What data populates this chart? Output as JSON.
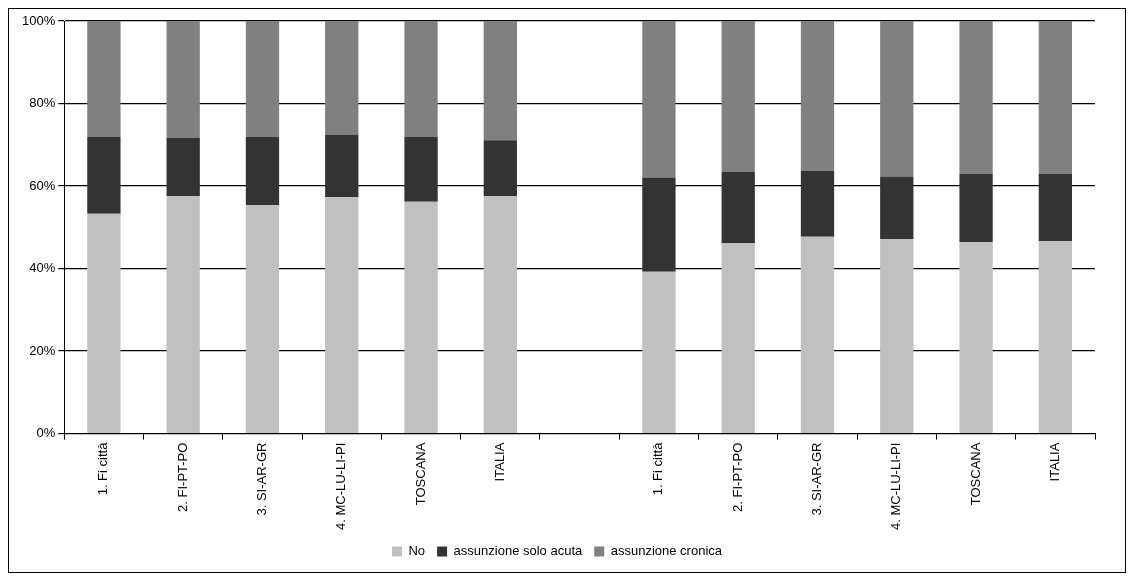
{
  "chart_data": {
    "type": "bar",
    "stacked": true,
    "categories": [
      "1. Fi città",
      "2. FI-PT-PO",
      "3. SI-AR-GR",
      "4. MC-LU-LI-PI",
      "TOSCANA",
      "ITALIA",
      null,
      "1. Fi città",
      "2. FI-PT-PO",
      "3. SI-AR-GR",
      "4. MC-LU-LI-PI",
      "TOSCANA",
      "ITALIA"
    ],
    "series": [
      {
        "name": "No",
        "color": "#c0c0c0",
        "values": [
          53.3,
          57.5,
          55.4,
          57.3,
          56.2,
          57.5,
          null,
          39.2,
          46.2,
          47.7,
          47.1,
          46.4,
          46.7
        ]
      },
      {
        "name": "assunzione solo acuta",
        "color": "#333333",
        "values": [
          18.6,
          14.2,
          16.5,
          15.1,
          15.7,
          13.6,
          null,
          22.9,
          17.2,
          16.0,
          15.2,
          16.5,
          16.2
        ]
      },
      {
        "name": "assunzione cronica",
        "color": "#808080",
        "values": [
          28.1,
          28.3,
          28.1,
          27.6,
          28.1,
          28.9,
          null,
          37.9,
          36.6,
          36.3,
          37.7,
          37.1,
          37.1
        ]
      }
    ],
    "ylim": [
      0,
      100
    ],
    "yticks": [
      {
        "value": 0,
        "label": "0%"
      },
      {
        "value": 20,
        "label": "20%"
      },
      {
        "value": 40,
        "label": "40%"
      },
      {
        "value": 60,
        "label": "60%"
      },
      {
        "value": 80,
        "label": "80%"
      },
      {
        "value": 100,
        "label": "100%"
      }
    ],
    "grid": "y",
    "legend": "bottom"
  }
}
